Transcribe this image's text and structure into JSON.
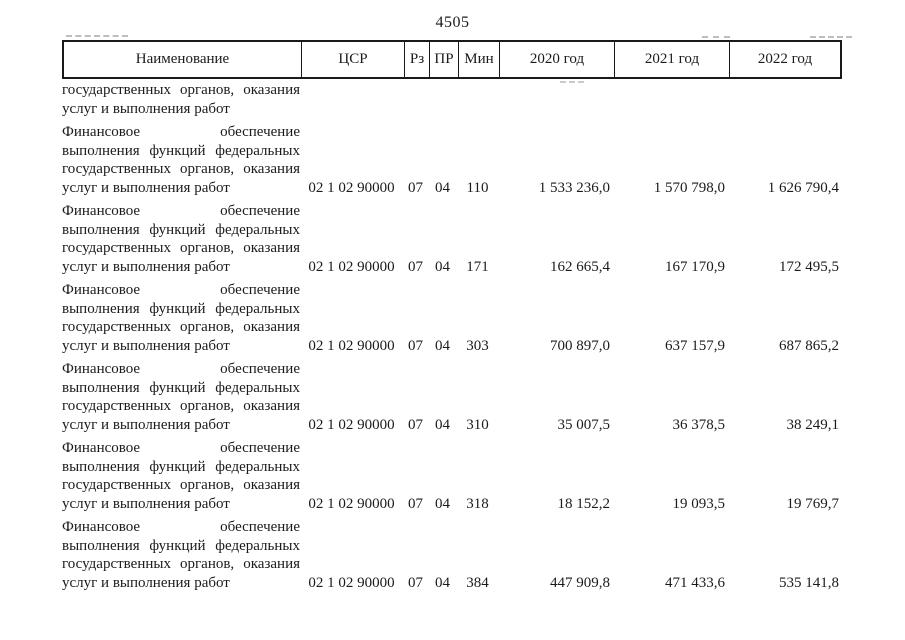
{
  "page": {
    "number": "4505"
  },
  "table": {
    "headers": {
      "name": "Наименование",
      "csr": "ЦСР",
      "rz": "Рз",
      "pr": "ПР",
      "min": "Мин",
      "y2020": "2020 год",
      "y2021": "2021 год",
      "y2022": "2022 год"
    },
    "continuation_lines": [
      "государственных органов, оказания",
      "услуг и выполнения работ"
    ],
    "rows": [
      {
        "name_lines": [
          "Финансовое обеспечение",
          "выполнения функций федеральных",
          "государственных органов, оказания",
          "услуг и выполнения работ"
        ],
        "csr": "02 1 02 90000",
        "rz": "07",
        "pr": "04",
        "min": "110",
        "y2020": "1 533 236,0",
        "y2021": "1 570 798,0",
        "y2022": "1 626 790,4"
      },
      {
        "name_lines": [
          "Финансовое обеспечение",
          "выполнения функций федеральных",
          "государственных органов, оказания",
          "услуг и выполнения работ"
        ],
        "csr": "02 1 02 90000",
        "rz": "07",
        "pr": "04",
        "min": "171",
        "y2020": "162 665,4",
        "y2021": "167 170,9",
        "y2022": "172 495,5"
      },
      {
        "name_lines": [
          "Финансовое обеспечение",
          "выполнения функций федеральных",
          "государственных органов, оказания",
          "услуг и выполнения работ"
        ],
        "csr": "02 1 02 90000",
        "rz": "07",
        "pr": "04",
        "min": "303",
        "y2020": "700 897,0",
        "y2021": "637 157,9",
        "y2022": "687 865,2"
      },
      {
        "name_lines": [
          "Финансовое обеспечение",
          "выполнения функций федеральных",
          "государственных органов, оказания",
          "услуг и выполнения работ"
        ],
        "csr": "02 1 02 90000",
        "rz": "07",
        "pr": "04",
        "min": "310",
        "y2020": "35 007,5",
        "y2021": "36 378,5",
        "y2022": "38 249,1"
      },
      {
        "name_lines": [
          "Финансовое обеспечение",
          "выполнения функций федеральных",
          "государственных органов, оказания",
          "услуг и выполнения работ"
        ],
        "csr": "02 1 02 90000",
        "rz": "07",
        "pr": "04",
        "min": "318",
        "y2020": "18 152,2",
        "y2021": "19 093,5",
        "y2022": "19 769,7"
      },
      {
        "name_lines": [
          "Финансовое обеспечение",
          "выполнения функций федеральных",
          "государственных органов, оказания",
          "услуг и выполнения работ"
        ],
        "csr": "02 1 02 90000",
        "rz": "07",
        "pr": "04",
        "min": "384",
        "y2020": "447 909,8",
        "y2021": "471 433,6",
        "y2022": "535 141,8"
      }
    ]
  }
}
